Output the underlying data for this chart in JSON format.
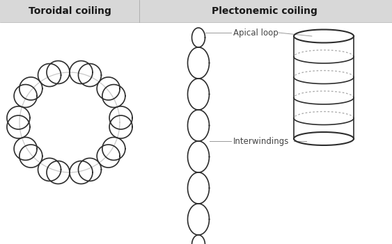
{
  "title_left": "Toroidal coiling",
  "title_right": "Plectonemic coiling",
  "label_apical": "Apical loop",
  "label_interwindings": "Interwindings",
  "bg_color": "#ffffff",
  "line_color": "#2d2d2d",
  "guide_color": "#c8c8c8",
  "header_bg": "#d8d8d8",
  "title_fontsize": 10,
  "label_fontsize": 8.5,
  "fig_width": 5.63,
  "fig_height": 3.51
}
